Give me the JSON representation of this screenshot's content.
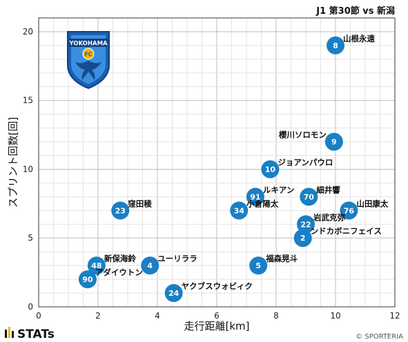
{
  "header": {
    "title": "J1 第30節 vs 新潟"
  },
  "footer": {
    "brand": "STATs",
    "copyright": "© SPORTERIA"
  },
  "logo": {
    "text": "YOKOHAMA",
    "badge": "FC"
  },
  "colors": {
    "point": "#1a7fc4",
    "grid_major": "#bdbdbd",
    "grid_minor": "#e3e3e3",
    "logo_blue": "#1b5fb4"
  },
  "chart_data": {
    "type": "scatter",
    "title": "J1 第30節 vs 新潟",
    "xlabel": "走行距離[km]",
    "ylabel": "スプリント回数[回]",
    "xlim": [
      0,
      12
    ],
    "ylim": [
      0,
      21
    ],
    "xticks": [
      0,
      2,
      4,
      6,
      8,
      10,
      12
    ],
    "yticks": [
      0,
      5,
      10,
      15,
      20
    ],
    "grid": true,
    "points": [
      {
        "number": "8",
        "name": "山根永遠",
        "x": 10.0,
        "y": 19,
        "label_pos": "right"
      },
      {
        "number": "9",
        "name": "櫻川ソロモン",
        "x": 9.95,
        "y": 12,
        "label_pos": "left"
      },
      {
        "number": "10",
        "name": "ジョアンパウロ",
        "x": 7.8,
        "y": 10,
        "label_pos": "right"
      },
      {
        "number": "91",
        "name": "ルキアン",
        "x": 7.3,
        "y": 8,
        "label_pos": "right"
      },
      {
        "number": "70",
        "name": "細井響",
        "x": 9.1,
        "y": 8,
        "label_pos": "right"
      },
      {
        "number": "34",
        "name": "小倉陽太",
        "x": 6.75,
        "y": 7,
        "label_pos": "right"
      },
      {
        "number": "76",
        "name": "山田康太",
        "x": 10.45,
        "y": 7,
        "label_pos": "right"
      },
      {
        "number": "23",
        "name": "窪田稜",
        "x": 2.75,
        "y": 7,
        "label_pos": "right"
      },
      {
        "number": "22",
        "name": "岩武克弥",
        "x": 9.0,
        "y": 6,
        "label_pos": "right"
      },
      {
        "number": "2",
        "name": "ンドカボニフェイス",
        "x": 8.9,
        "y": 5,
        "label_pos": "right"
      },
      {
        "number": "48",
        "name": "新保海鈴",
        "x": 1.95,
        "y": 3,
        "label_pos": "right"
      },
      {
        "number": "4",
        "name": "ユーリララ",
        "x": 3.75,
        "y": 3,
        "label_pos": "right"
      },
      {
        "number": "5",
        "name": "福森晃斗",
        "x": 7.4,
        "y": 3,
        "label_pos": "right"
      },
      {
        "number": "90",
        "name": "アダイウトン",
        "x": 1.65,
        "y": 2,
        "label_pos": "right"
      },
      {
        "number": "24",
        "name": "ヤクブスウォビィク",
        "x": 4.55,
        "y": 1,
        "label_pos": "right"
      }
    ]
  }
}
